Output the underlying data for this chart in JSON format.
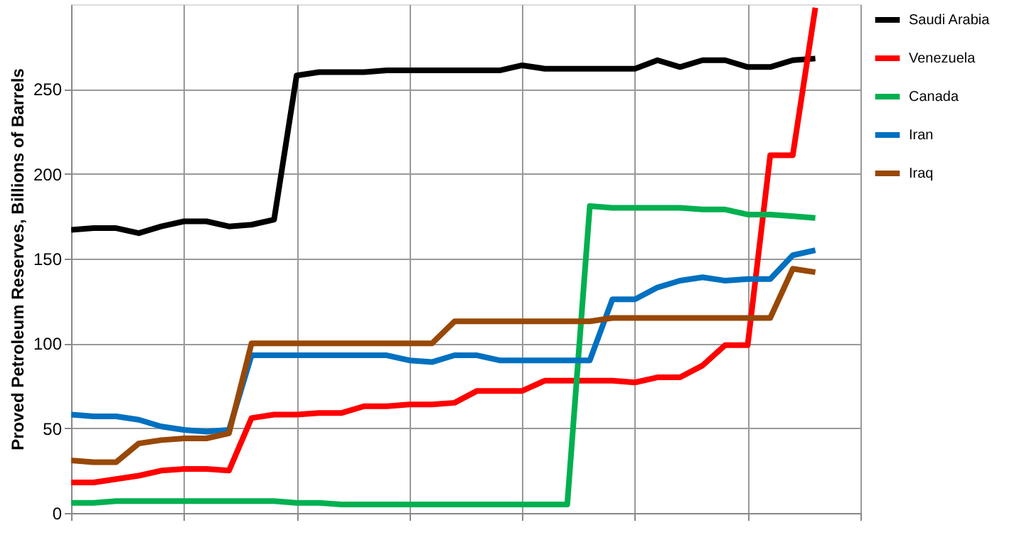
{
  "chart_data": {
    "type": "line",
    "ylabel": "Proved Petroleum Reserves, Billions of Barrels",
    "categories": [
      null,
      null,
      null,
      null,
      null,
      null,
      null,
      null,
      null,
      null,
      null,
      null,
      null,
      null,
      null,
      null,
      null,
      null,
      null,
      null,
      null,
      null,
      null,
      null,
      null,
      null,
      null,
      null,
      null,
      null,
      null,
      null,
      null,
      null,
      null,
      null
    ],
    "ylim": [
      0,
      300
    ],
    "yticks": [
      0,
      50,
      100,
      150,
      200,
      250
    ],
    "tick_labels": "y",
    "grid": true,
    "legend": "right",
    "line_style": "solid",
    "marker": "none",
    "series": [
      {
        "name": "Saudi Arabia",
        "color": "#000000",
        "values": [
          167,
          168,
          168,
          165,
          169,
          172,
          172,
          169,
          170,
          173,
          258,
          260,
          260,
          260,
          261,
          261,
          261,
          261,
          261,
          261,
          264,
          262,
          262,
          262,
          262,
          262,
          267,
          263,
          267,
          267,
          263,
          263,
          267,
          268,
          null,
          null
        ]
      },
      {
        "name": "Venezuela",
        "color": "#ff0000",
        "values": [
          18,
          18,
          20,
          22,
          25,
          26,
          26,
          25,
          56,
          58,
          58,
          59,
          59,
          63,
          63,
          64,
          64,
          65,
          72,
          72,
          72,
          78,
          78,
          78,
          78,
          77,
          80,
          80,
          87,
          99,
          99,
          211,
          211,
          298,
          null,
          null
        ]
      },
      {
        "name": "Canada",
        "color": "#00b050",
        "values": [
          6,
          6,
          7,
          7,
          7,
          7,
          7,
          7,
          7,
          7,
          6,
          6,
          5,
          5,
          5,
          5,
          5,
          5,
          5,
          5,
          5,
          5,
          5,
          181,
          180,
          180,
          180,
          180,
          179,
          179,
          176,
          176,
          175,
          174,
          null,
          null
        ]
      },
      {
        "name": "Iran",
        "color": "#0070c0",
        "values": [
          58,
          57,
          57,
          55,
          51,
          49,
          48,
          49,
          93,
          93,
          93,
          93,
          93,
          93,
          93,
          90,
          89,
          93,
          93,
          90,
          90,
          90,
          90,
          90,
          126,
          126,
          133,
          137,
          139,
          137,
          138,
          138,
          152,
          155,
          null,
          null
        ]
      },
      {
        "name": "Iraq",
        "color": "#984807",
        "values": [
          31,
          30,
          30,
          41,
          43,
          44,
          44,
          47,
          100,
          100,
          100,
          100,
          100,
          100,
          100,
          100,
          100,
          113,
          113,
          113,
          113,
          113,
          113,
          113,
          115,
          115,
          115,
          115,
          115,
          115,
          115,
          115,
          144,
          142,
          null,
          null
        ]
      }
    ]
  }
}
